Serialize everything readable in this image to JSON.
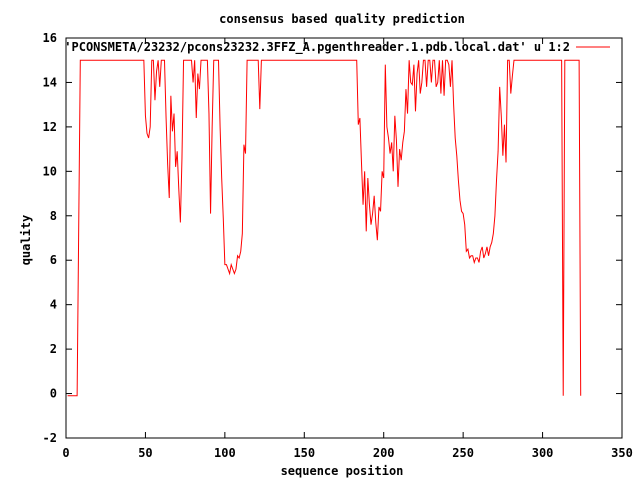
{
  "chart_data": {
    "type": "line",
    "title": "consensus based quality prediction",
    "xlabel": "sequence position",
    "ylabel": "quality",
    "xlim": [
      0,
      350
    ],
    "ylim": [
      -2,
      16
    ],
    "x_ticks": [
      0,
      50,
      100,
      150,
      200,
      250,
      300,
      350
    ],
    "y_ticks": [
      -2,
      0,
      2,
      4,
      6,
      8,
      10,
      12,
      14,
      16
    ],
    "grid": false,
    "legend_position": "top-right",
    "series": [
      {
        "name": "'PCONSMETA/23232/pcons23232.3FFZ_A.pgenthreader.1.pdb.local.dat' u 1:2",
        "color": "#ff0000",
        "points": [
          [
            1,
            -0.1
          ],
          [
            7,
            -0.1
          ],
          [
            8,
            7.5
          ],
          [
            9,
            15
          ],
          [
            49,
            15
          ],
          [
            50,
            12.5
          ],
          [
            51,
            11.7
          ],
          [
            52,
            11.5
          ],
          [
            53,
            12
          ],
          [
            54,
            15
          ],
          [
            55,
            15
          ],
          [
            56,
            13.2
          ],
          [
            57,
            14.5
          ],
          [
            58,
            15
          ],
          [
            59,
            13.8
          ],
          [
            60,
            15
          ],
          [
            61,
            15
          ],
          [
            62,
            15
          ],
          [
            63,
            12.4
          ],
          [
            64,
            10.3
          ],
          [
            65,
            8.8
          ],
          [
            66,
            13.4
          ],
          [
            67,
            11.8
          ],
          [
            68,
            12.6
          ],
          [
            69,
            10.2
          ],
          [
            70,
            10.9
          ],
          [
            71,
            9.2
          ],
          [
            72,
            7.7
          ],
          [
            73,
            10.6
          ],
          [
            74,
            15
          ],
          [
            75,
            15
          ],
          [
            79,
            15
          ],
          [
            80,
            14
          ],
          [
            81,
            15
          ],
          [
            82,
            12.4
          ],
          [
            83,
            14.4
          ],
          [
            84,
            13.7
          ],
          [
            85,
            15
          ],
          [
            86,
            15
          ],
          [
            89,
            15
          ],
          [
            90,
            12.6
          ],
          [
            91,
            8.1
          ],
          [
            92,
            12
          ],
          [
            93,
            15
          ],
          [
            96,
            15
          ],
          [
            97,
            12
          ],
          [
            98,
            9.7
          ],
          [
            99,
            7.9
          ],
          [
            100,
            5.8
          ],
          [
            101,
            5.8
          ],
          [
            102,
            5.6
          ],
          [
            103,
            5.4
          ],
          [
            104,
            5.8
          ],
          [
            105,
            5.6
          ],
          [
            106,
            5.4
          ],
          [
            107,
            5.6
          ],
          [
            108,
            6.2
          ],
          [
            109,
            6.1
          ],
          [
            110,
            6.4
          ],
          [
            111,
            7.2
          ],
          [
            112,
            11.2
          ],
          [
            113,
            10.8
          ],
          [
            114,
            15
          ],
          [
            115,
            15
          ],
          [
            121,
            15
          ],
          [
            122,
            12.8
          ],
          [
            123,
            15
          ],
          [
            124,
            15
          ],
          [
            183,
            15
          ],
          [
            184,
            12.1
          ],
          [
            185,
            12.4
          ],
          [
            186,
            10.4
          ],
          [
            187,
            8.5
          ],
          [
            188,
            10
          ],
          [
            189,
            7.3
          ],
          [
            190,
            9.7
          ],
          [
            191,
            8.5
          ],
          [
            192,
            7.6
          ],
          [
            193,
            8.1
          ],
          [
            194,
            8.9
          ],
          [
            195,
            7.7
          ],
          [
            196,
            6.9
          ],
          [
            197,
            8.4
          ],
          [
            198,
            8.2
          ],
          [
            199,
            10
          ],
          [
            200,
            9.7
          ],
          [
            201,
            14.8
          ],
          [
            202,
            12
          ],
          [
            203,
            11.5
          ],
          [
            204,
            10.8
          ],
          [
            205,
            11.3
          ],
          [
            206,
            10
          ],
          [
            207,
            12.5
          ],
          [
            208,
            11.4
          ],
          [
            209,
            9.3
          ],
          [
            210,
            11
          ],
          [
            211,
            10.5
          ],
          [
            212,
            11.3
          ],
          [
            213,
            11.8
          ],
          [
            214,
            13.7
          ],
          [
            215,
            12.6
          ],
          [
            216,
            15
          ],
          [
            217,
            14
          ],
          [
            218,
            13.9
          ],
          [
            219,
            14.8
          ],
          [
            220,
            12.7
          ],
          [
            221,
            14.4
          ],
          [
            222,
            15
          ],
          [
            223,
            13.5
          ],
          [
            224,
            14
          ],
          [
            225,
            15
          ],
          [
            226,
            15
          ],
          [
            227,
            13.8
          ],
          [
            228,
            15
          ],
          [
            229,
            15
          ],
          [
            230,
            14
          ],
          [
            231,
            15
          ],
          [
            232,
            15
          ],
          [
            233,
            13.8
          ],
          [
            234,
            14
          ],
          [
            235,
            15
          ],
          [
            236,
            13.5
          ],
          [
            237,
            15
          ],
          [
            238,
            13.4
          ],
          [
            239,
            15
          ],
          [
            240,
            15
          ],
          [
            241,
            14.8
          ],
          [
            242,
            13.8
          ],
          [
            243,
            15
          ],
          [
            244,
            13
          ],
          [
            245,
            11.5
          ],
          [
            246,
            10.7
          ],
          [
            247,
            9.6
          ],
          [
            248,
            8.7
          ],
          [
            249,
            8.2
          ],
          [
            250,
            8.1
          ],
          [
            251,
            7.6
          ],
          [
            252,
            6.4
          ],
          [
            253,
            6.5
          ],
          [
            254,
            6.1
          ],
          [
            255,
            6.2
          ],
          [
            256,
            6.2
          ],
          [
            257,
            5.9
          ],
          [
            258,
            6.1
          ],
          [
            259,
            6.1
          ],
          [
            260,
            5.9
          ],
          [
            261,
            6.4
          ],
          [
            262,
            6.6
          ],
          [
            263,
            6.1
          ],
          [
            264,
            6.3
          ],
          [
            265,
            6.6
          ],
          [
            266,
            6.2
          ],
          [
            267,
            6.6
          ],
          [
            268,
            6.8
          ],
          [
            269,
            7.2
          ],
          [
            270,
            8
          ],
          [
            271,
            9.6
          ],
          [
            272,
            10.9
          ],
          [
            273,
            13.8
          ],
          [
            274,
            12.5
          ],
          [
            275,
            10.7
          ],
          [
            276,
            12.1
          ],
          [
            277,
            10.4
          ],
          [
            278,
            15
          ],
          [
            279,
            15
          ],
          [
            280,
            13.5
          ],
          [
            281,
            14.3
          ],
          [
            282,
            15
          ],
          [
            283,
            15
          ],
          [
            312,
            15
          ],
          [
            313,
            -0.1
          ],
          [
            314,
            15
          ],
          [
            323,
            15
          ],
          [
            324,
            -0.1
          ]
        ]
      }
    ]
  }
}
